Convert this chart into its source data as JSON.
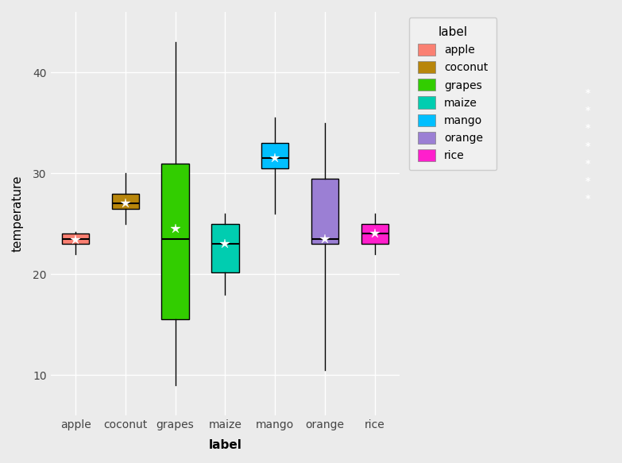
{
  "categories": [
    "apple",
    "coconut",
    "grapes",
    "maize",
    "mango",
    "orange",
    "rice"
  ],
  "colors": {
    "apple": "#FA8072",
    "coconut": "#B8860B",
    "grapes": "#32CD00",
    "maize": "#00CDB0",
    "mango": "#00BFFF",
    "orange": "#9B7FD4",
    "rice": "#FF1FCC"
  },
  "boxes": {
    "apple": {
      "whislo": 22.0,
      "q1": 23.0,
      "med": 23.5,
      "q3": 24.0,
      "whishi": 24.2,
      "mean": 23.4
    },
    "coconut": {
      "whislo": 25.0,
      "q1": 26.5,
      "med": 27.0,
      "q3": 28.0,
      "whishi": 30.0,
      "mean": 27.0
    },
    "grapes": {
      "whislo": 9.0,
      "q1": 15.5,
      "med": 23.5,
      "q3": 31.0,
      "whishi": 43.0,
      "mean": 24.5
    },
    "maize": {
      "whislo": 18.0,
      "q1": 20.2,
      "med": 23.0,
      "q3": 25.0,
      "whishi": 26.0,
      "mean": 23.0
    },
    "mango": {
      "whislo": 26.0,
      "q1": 30.5,
      "med": 31.5,
      "q3": 33.0,
      "whishi": 35.5,
      "mean": 31.5
    },
    "orange": {
      "whislo": 10.5,
      "q1": 23.0,
      "med": 23.5,
      "q3": 29.5,
      "whishi": 35.0,
      "mean": 23.5
    },
    "rice": {
      "whislo": 22.0,
      "q1": 23.0,
      "med": 24.0,
      "q3": 25.0,
      "whishi": 26.0,
      "mean": 24.0
    }
  },
  "ylabel": "temperature",
  "xlabel": "label",
  "legend_title": "label",
  "background_color": "#EBEBEB",
  "grid_color": "#FFFFFF",
  "ylim": [
    6,
    46
  ],
  "yticks": [
    10,
    20,
    30,
    40
  ]
}
